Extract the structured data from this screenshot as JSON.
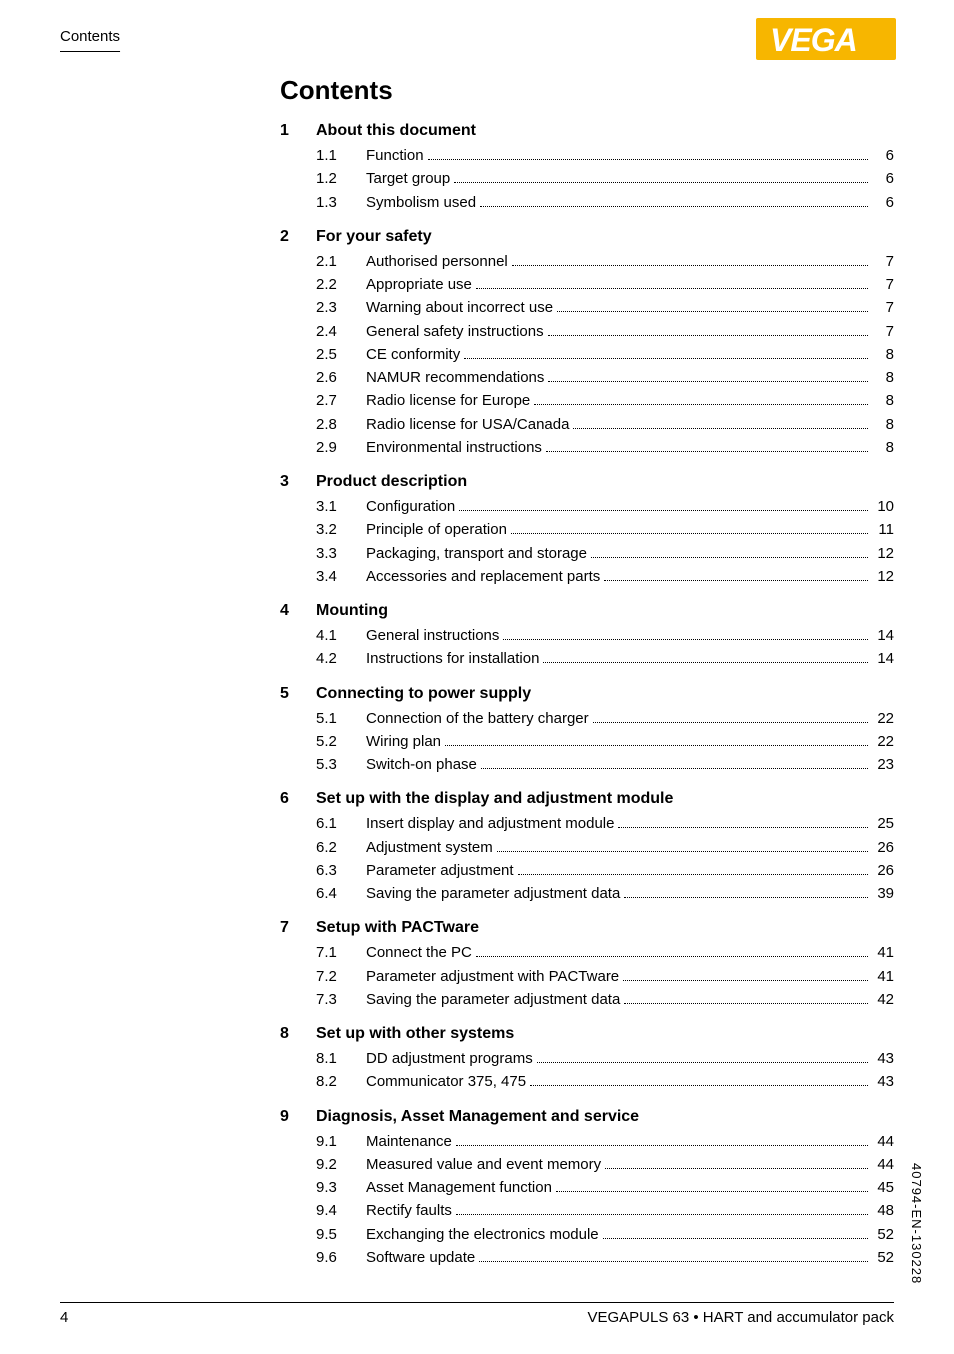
{
  "header_label": "Contents",
  "logo": {
    "text": "VEGA",
    "bg_color": "#f7b600",
    "text_color": "#ffffff"
  },
  "title": "Contents",
  "sections": [
    {
      "num": "1",
      "title": "About this document",
      "items": [
        {
          "num": "1.1",
          "label": "Function",
          "page": "6"
        },
        {
          "num": "1.2",
          "label": "Target group",
          "page": "6"
        },
        {
          "num": "1.3",
          "label": "Symbolism used",
          "page": "6"
        }
      ]
    },
    {
      "num": "2",
      "title": "For your safety",
      "items": [
        {
          "num": "2.1",
          "label": "Authorised personnel",
          "page": "7"
        },
        {
          "num": "2.2",
          "label": "Appropriate use",
          "page": "7"
        },
        {
          "num": "2.3",
          "label": "Warning about incorrect use",
          "page": "7"
        },
        {
          "num": "2.4",
          "label": "General safety instructions",
          "page": "7"
        },
        {
          "num": "2.5",
          "label": "CE conformity",
          "page": "8"
        },
        {
          "num": "2.6",
          "label": "NAMUR recommendations",
          "page": "8"
        },
        {
          "num": "2.7",
          "label": "Radio license for Europe",
          "page": "8"
        },
        {
          "num": "2.8",
          "label": "Radio license for USA/Canada",
          "page": "8"
        },
        {
          "num": "2.9",
          "label": "Environmental instructions",
          "page": "8"
        }
      ]
    },
    {
      "num": "3",
      "title": "Product description",
      "items": [
        {
          "num": "3.1",
          "label": "Configuration",
          "page": "10"
        },
        {
          "num": "3.2",
          "label": "Principle of operation",
          "page": "11"
        },
        {
          "num": "3.3",
          "label": "Packaging, transport and storage",
          "page": "12"
        },
        {
          "num": "3.4",
          "label": "Accessories and replacement parts",
          "page": "12"
        }
      ]
    },
    {
      "num": "4",
      "title": "Mounting",
      "items": [
        {
          "num": "4.1",
          "label": "General instructions",
          "page": "14"
        },
        {
          "num": "4.2",
          "label": "Instructions for installation",
          "page": "14"
        }
      ]
    },
    {
      "num": "5",
      "title": "Connecting to power supply",
      "items": [
        {
          "num": "5.1",
          "label": "Connection of the battery charger",
          "page": "22"
        },
        {
          "num": "5.2",
          "label": "Wiring plan",
          "page": "22"
        },
        {
          "num": "5.3",
          "label": "Switch-on phase",
          "page": "23"
        }
      ]
    },
    {
      "num": "6",
      "title": "Set up with the display and adjustment module",
      "items": [
        {
          "num": "6.1",
          "label": "Insert display and adjustment module",
          "page": "25"
        },
        {
          "num": "6.2",
          "label": "Adjustment system",
          "page": "26"
        },
        {
          "num": "6.3",
          "label": "Parameter adjustment",
          "page": "26"
        },
        {
          "num": "6.4",
          "label": "Saving the parameter adjustment data",
          "page": "39"
        }
      ]
    },
    {
      "num": "7",
      "title": "Setup with PACTware",
      "items": [
        {
          "num": "7.1",
          "label": "Connect the PC",
          "page": "41"
        },
        {
          "num": "7.2",
          "label": "Parameter adjustment with PACTware",
          "page": "41"
        },
        {
          "num": "7.3",
          "label": "Saving the parameter adjustment data",
          "page": "42"
        }
      ]
    },
    {
      "num": "8",
      "title": "Set up with other systems",
      "items": [
        {
          "num": "8.1",
          "label": "DD adjustment programs",
          "page": "43"
        },
        {
          "num": "8.2",
          "label": "Communicator 375, 475",
          "page": "43"
        }
      ]
    },
    {
      "num": "9",
      "title": "Diagnosis, Asset Management and service",
      "items": [
        {
          "num": "9.1",
          "label": "Maintenance",
          "page": "44"
        },
        {
          "num": "9.2",
          "label": "Measured value and event memory",
          "page": "44"
        },
        {
          "num": "9.3",
          "label": "Asset Management function",
          "page": "45"
        },
        {
          "num": "9.4",
          "label": "Rectify faults",
          "page": "48"
        },
        {
          "num": "9.5",
          "label": "Exchanging the electronics module",
          "page": "52"
        },
        {
          "num": "9.6",
          "label": "Software update",
          "page": "52"
        }
      ]
    }
  ],
  "footer": {
    "page_num": "4",
    "product": "VEGAPULS 63 • HART and accumulator pack"
  },
  "side_code": "40794-EN-130228"
}
